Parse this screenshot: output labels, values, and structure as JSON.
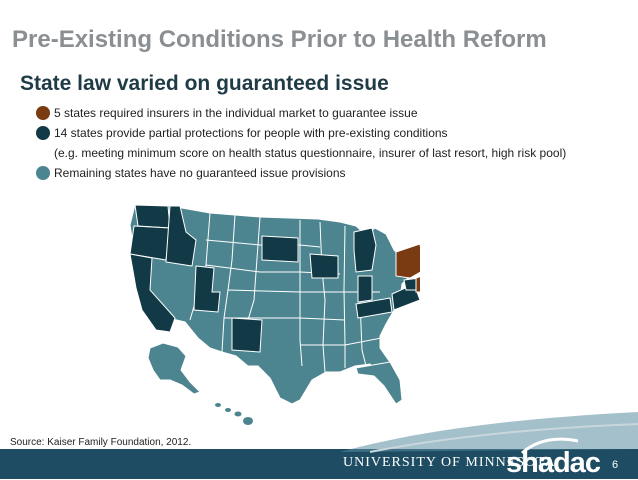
{
  "slide": {
    "title": "Pre-Existing Conditions Prior to Health Reform",
    "subtitle": "State law varied on guaranteed issue",
    "page_number": "6"
  },
  "legend": {
    "items": [
      {
        "text": "5 states required insurers in the individual market to guarantee issue",
        "color": "#7a3a12"
      },
      {
        "text": "14 states provide partial protections for people with pre-existing conditions",
        "color": "#123a46"
      },
      {
        "text": "(e.g. meeting minimum score on health status questionnaire, insurer of last resort, high risk pool)",
        "color": null
      },
      {
        "text": "Remaining states have no guaranteed issue provisions",
        "color": "#4c8590"
      }
    ]
  },
  "map": {
    "colors": {
      "guaranteed_issue": "#7a3a12",
      "partial_protection": "#123a46",
      "no_provisions": "#4c8590",
      "borders": "#ffffff"
    }
  },
  "source": "Source: Kaiser Family Foundation, 2012.",
  "footer": {
    "university": "UNIVERSITY OF MINNESOTA",
    "brand": "shadac"
  }
}
